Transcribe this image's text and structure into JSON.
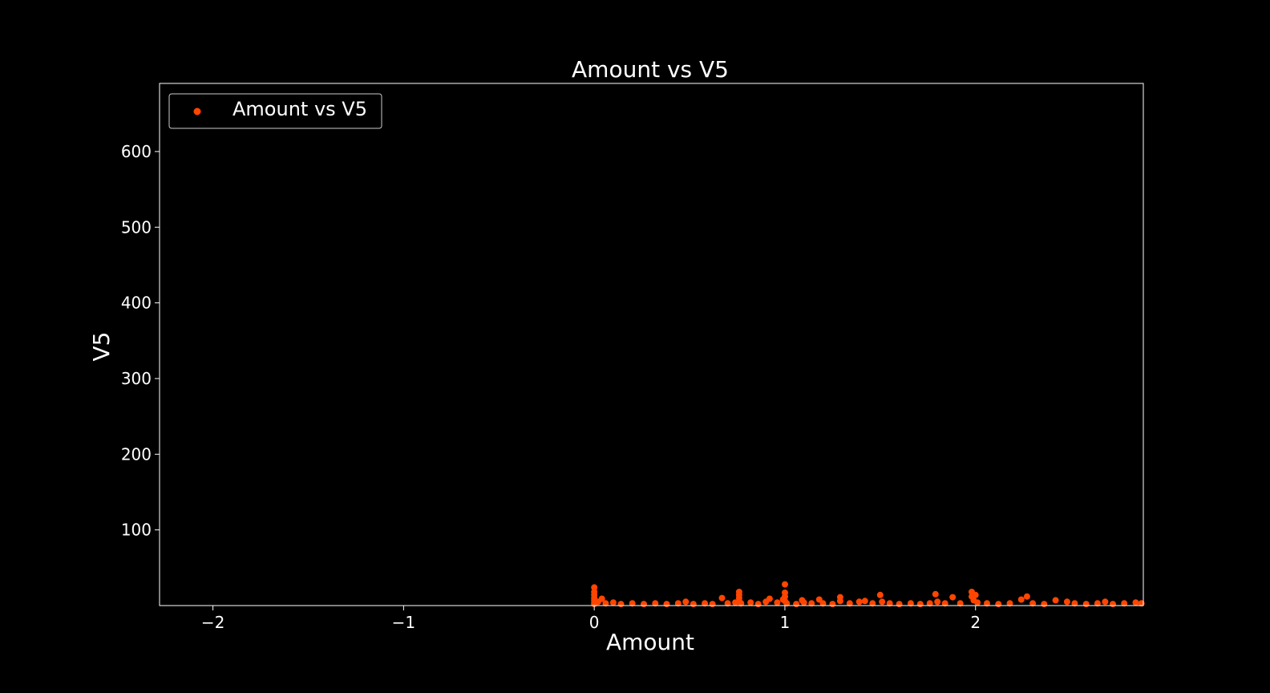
{
  "chart_data": {
    "type": "scatter",
    "title": "Amount vs V5",
    "xlabel": "Amount",
    "ylabel": "V5",
    "xlim": [
      -2.28,
      2.88
    ],
    "ylim": [
      0,
      690
    ],
    "xticks": [
      -2,
      -1,
      0,
      1,
      2
    ],
    "xtick_labels": [
      "−2",
      "−1",
      "0",
      "1",
      "2"
    ],
    "yticks": [
      100,
      200,
      300,
      400,
      500,
      600
    ],
    "ytick_labels": [
      "100",
      "200",
      "300",
      "400",
      "500",
      "600"
    ],
    "grid": false,
    "legend_position": "top-left",
    "background": "#000000",
    "foreground": "#ffffff",
    "series": [
      {
        "name": "Amount vs V5",
        "color": "#ff4500",
        "points": [
          {
            "x": 0.0,
            "y": 24
          },
          {
            "x": 0.0,
            "y": 18
          },
          {
            "x": 0.0,
            "y": 14
          },
          {
            "x": 0.0,
            "y": 10
          },
          {
            "x": 0.0,
            "y": 7
          },
          {
            "x": 0.0,
            "y": 4
          },
          {
            "x": 0.0,
            "y": 2
          },
          {
            "x": 0.02,
            "y": 5
          },
          {
            "x": 0.04,
            "y": 9
          },
          {
            "x": 0.06,
            "y": 3
          },
          {
            "x": 0.1,
            "y": 4
          },
          {
            "x": 0.14,
            "y": 2
          },
          {
            "x": 0.2,
            "y": 3
          },
          {
            "x": 0.26,
            "y": 2
          },
          {
            "x": 0.32,
            "y": 3
          },
          {
            "x": 0.38,
            "y": 2
          },
          {
            "x": 0.44,
            "y": 3
          },
          {
            "x": 0.48,
            "y": 5
          },
          {
            "x": 0.52,
            "y": 2
          },
          {
            "x": 0.58,
            "y": 3
          },
          {
            "x": 0.62,
            "y": 2
          },
          {
            "x": 0.67,
            "y": 10
          },
          {
            "x": 0.7,
            "y": 3
          },
          {
            "x": 0.74,
            "y": 4
          },
          {
            "x": 0.76,
            "y": 18
          },
          {
            "x": 0.76,
            "y": 14
          },
          {
            "x": 0.76,
            "y": 10
          },
          {
            "x": 0.76,
            "y": 6
          },
          {
            "x": 0.77,
            "y": 3
          },
          {
            "x": 0.82,
            "y": 4
          },
          {
            "x": 0.86,
            "y": 2
          },
          {
            "x": 0.9,
            "y": 5
          },
          {
            "x": 0.92,
            "y": 9
          },
          {
            "x": 0.96,
            "y": 4
          },
          {
            "x": 0.99,
            "y": 8
          },
          {
            "x": 1.0,
            "y": 28
          },
          {
            "x": 1.0,
            "y": 17
          },
          {
            "x": 1.0,
            "y": 12
          },
          {
            "x": 1.0,
            "y": 6
          },
          {
            "x": 1.01,
            "y": 3
          },
          {
            "x": 1.06,
            "y": 2
          },
          {
            "x": 1.09,
            "y": 7
          },
          {
            "x": 1.1,
            "y": 4
          },
          {
            "x": 1.14,
            "y": 3
          },
          {
            "x": 1.18,
            "y": 8
          },
          {
            "x": 1.2,
            "y": 3
          },
          {
            "x": 1.25,
            "y": 2
          },
          {
            "x": 1.29,
            "y": 11
          },
          {
            "x": 1.29,
            "y": 6
          },
          {
            "x": 1.34,
            "y": 3
          },
          {
            "x": 1.39,
            "y": 5
          },
          {
            "x": 1.42,
            "y": 6
          },
          {
            "x": 1.46,
            "y": 3
          },
          {
            "x": 1.5,
            "y": 14
          },
          {
            "x": 1.51,
            "y": 5
          },
          {
            "x": 1.55,
            "y": 3
          },
          {
            "x": 1.6,
            "y": 2
          },
          {
            "x": 1.66,
            "y": 3
          },
          {
            "x": 1.71,
            "y": 2
          },
          {
            "x": 1.76,
            "y": 3
          },
          {
            "x": 1.79,
            "y": 15
          },
          {
            "x": 1.8,
            "y": 5
          },
          {
            "x": 1.84,
            "y": 3
          },
          {
            "x": 1.88,
            "y": 11
          },
          {
            "x": 1.92,
            "y": 3
          },
          {
            "x": 1.98,
            "y": 18
          },
          {
            "x": 1.98,
            "y": 12
          },
          {
            "x": 1.99,
            "y": 7
          },
          {
            "x": 2.0,
            "y": 14
          },
          {
            "x": 2.01,
            "y": 4
          },
          {
            "x": 2.06,
            "y": 3
          },
          {
            "x": 2.12,
            "y": 2
          },
          {
            "x": 2.18,
            "y": 3
          },
          {
            "x": 2.24,
            "y": 8
          },
          {
            "x": 2.27,
            "y": 12
          },
          {
            "x": 2.3,
            "y": 3
          },
          {
            "x": 2.36,
            "y": 2
          },
          {
            "x": 2.42,
            "y": 7
          },
          {
            "x": 2.48,
            "y": 5
          },
          {
            "x": 2.52,
            "y": 3
          },
          {
            "x": 2.58,
            "y": 2
          },
          {
            "x": 2.64,
            "y": 3
          },
          {
            "x": 2.68,
            "y": 5
          },
          {
            "x": 2.72,
            "y": 2
          },
          {
            "x": 2.78,
            "y": 3
          },
          {
            "x": 2.84,
            "y": 4
          },
          {
            "x": 2.87,
            "y": 3
          }
        ]
      }
    ]
  }
}
